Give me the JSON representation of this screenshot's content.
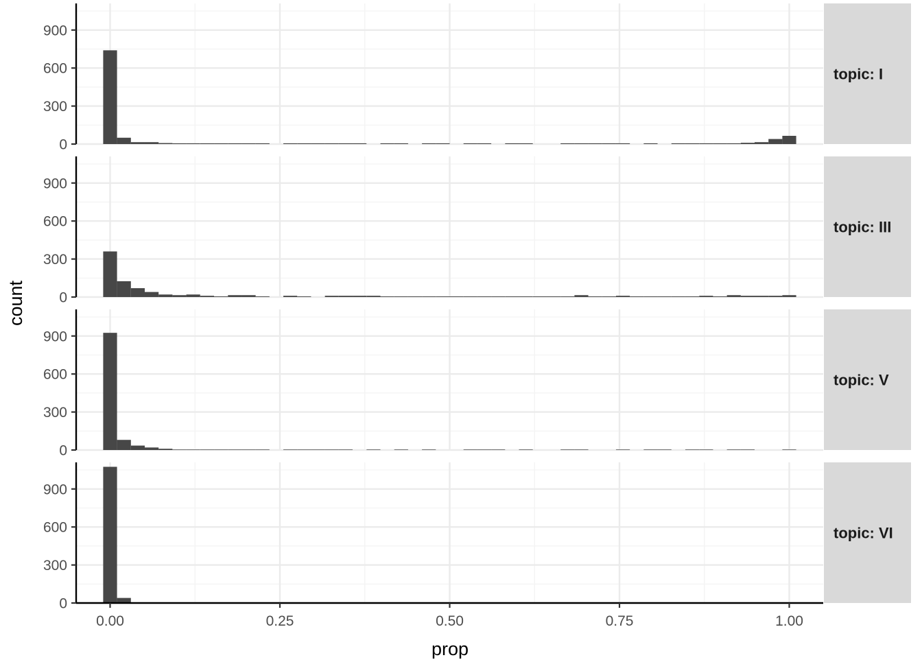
{
  "chart_data": {
    "type": "bar",
    "xlabel": "prop",
    "ylabel": "count",
    "xlim": [
      -0.05,
      1.05
    ],
    "ylim": [
      0,
      1110
    ],
    "x_ticks": [
      0,
      0.25,
      0.5,
      0.75,
      1
    ],
    "x_tick_labels": [
      "0.00",
      "0.25",
      "0.50",
      "0.75",
      "1.00"
    ],
    "y_ticks": [
      0,
      300,
      600,
      900
    ],
    "y_tick_labels": [
      "0",
      "300",
      "600",
      "900"
    ],
    "bin_width": 0.0204,
    "bin_centers": [
      0.0,
      0.0204,
      0.0408,
      0.0612,
      0.0816,
      0.102,
      0.1224,
      0.1429,
      0.1633,
      0.1837,
      0.2041,
      0.2245,
      0.2449,
      0.2653,
      0.2857,
      0.3061,
      0.3265,
      0.3469,
      0.3673,
      0.3878,
      0.4082,
      0.4286,
      0.449,
      0.4694,
      0.4898,
      0.5102,
      0.5306,
      0.551,
      0.5714,
      0.5918,
      0.6122,
      0.6327,
      0.6531,
      0.6735,
      0.6939,
      0.7143,
      0.7347,
      0.7551,
      0.7755,
      0.7959,
      0.8163,
      0.8367,
      0.8571,
      0.8776,
      0.898,
      0.9184,
      0.9388,
      0.9592,
      0.9796,
      1.0
    ],
    "grid": true,
    "panels": [
      {
        "strip": "topic: I",
        "values": [
          740,
          50,
          15,
          15,
          8,
          6,
          6,
          6,
          6,
          6,
          6,
          6,
          0,
          6,
          6,
          6,
          6,
          6,
          6,
          0,
          6,
          6,
          0,
          6,
          6,
          0,
          6,
          6,
          0,
          6,
          6,
          0,
          0,
          6,
          6,
          6,
          6,
          6,
          0,
          6,
          0,
          6,
          6,
          6,
          6,
          6,
          10,
          15,
          40,
          65
        ]
      },
      {
        "strip": "topic: III",
        "values": [
          360,
          125,
          70,
          40,
          20,
          15,
          20,
          10,
          5,
          15,
          15,
          5,
          0,
          10,
          5,
          0,
          10,
          10,
          10,
          10,
          5,
          5,
          5,
          5,
          5,
          5,
          5,
          5,
          5,
          5,
          5,
          5,
          5,
          5,
          15,
          5,
          5,
          10,
          5,
          5,
          5,
          5,
          5,
          10,
          5,
          15,
          10,
          10,
          10,
          15
        ]
      },
      {
        "strip": "topic: V",
        "values": [
          925,
          80,
          35,
          20,
          10,
          4,
          4,
          4,
          4,
          4,
          4,
          4,
          0,
          4,
          4,
          4,
          4,
          4,
          0,
          4,
          0,
          4,
          0,
          4,
          0,
          0,
          4,
          4,
          4,
          0,
          4,
          0,
          0,
          4,
          4,
          0,
          0,
          4,
          0,
          4,
          4,
          0,
          4,
          4,
          0,
          4,
          4,
          0,
          0,
          4
        ]
      },
      {
        "strip": "topic: VI",
        "values": [
          1075,
          40,
          5,
          5,
          4,
          4,
          3,
          3,
          3,
          3,
          3,
          3,
          0,
          3,
          3,
          3,
          3,
          3,
          3,
          3,
          3,
          3,
          0,
          0,
          0,
          0,
          0,
          0,
          0,
          0,
          0,
          3,
          0,
          3,
          0,
          0,
          0,
          0,
          3,
          0,
          0,
          0,
          3,
          0,
          0,
          3,
          0,
          0,
          0,
          0
        ]
      }
    ]
  }
}
